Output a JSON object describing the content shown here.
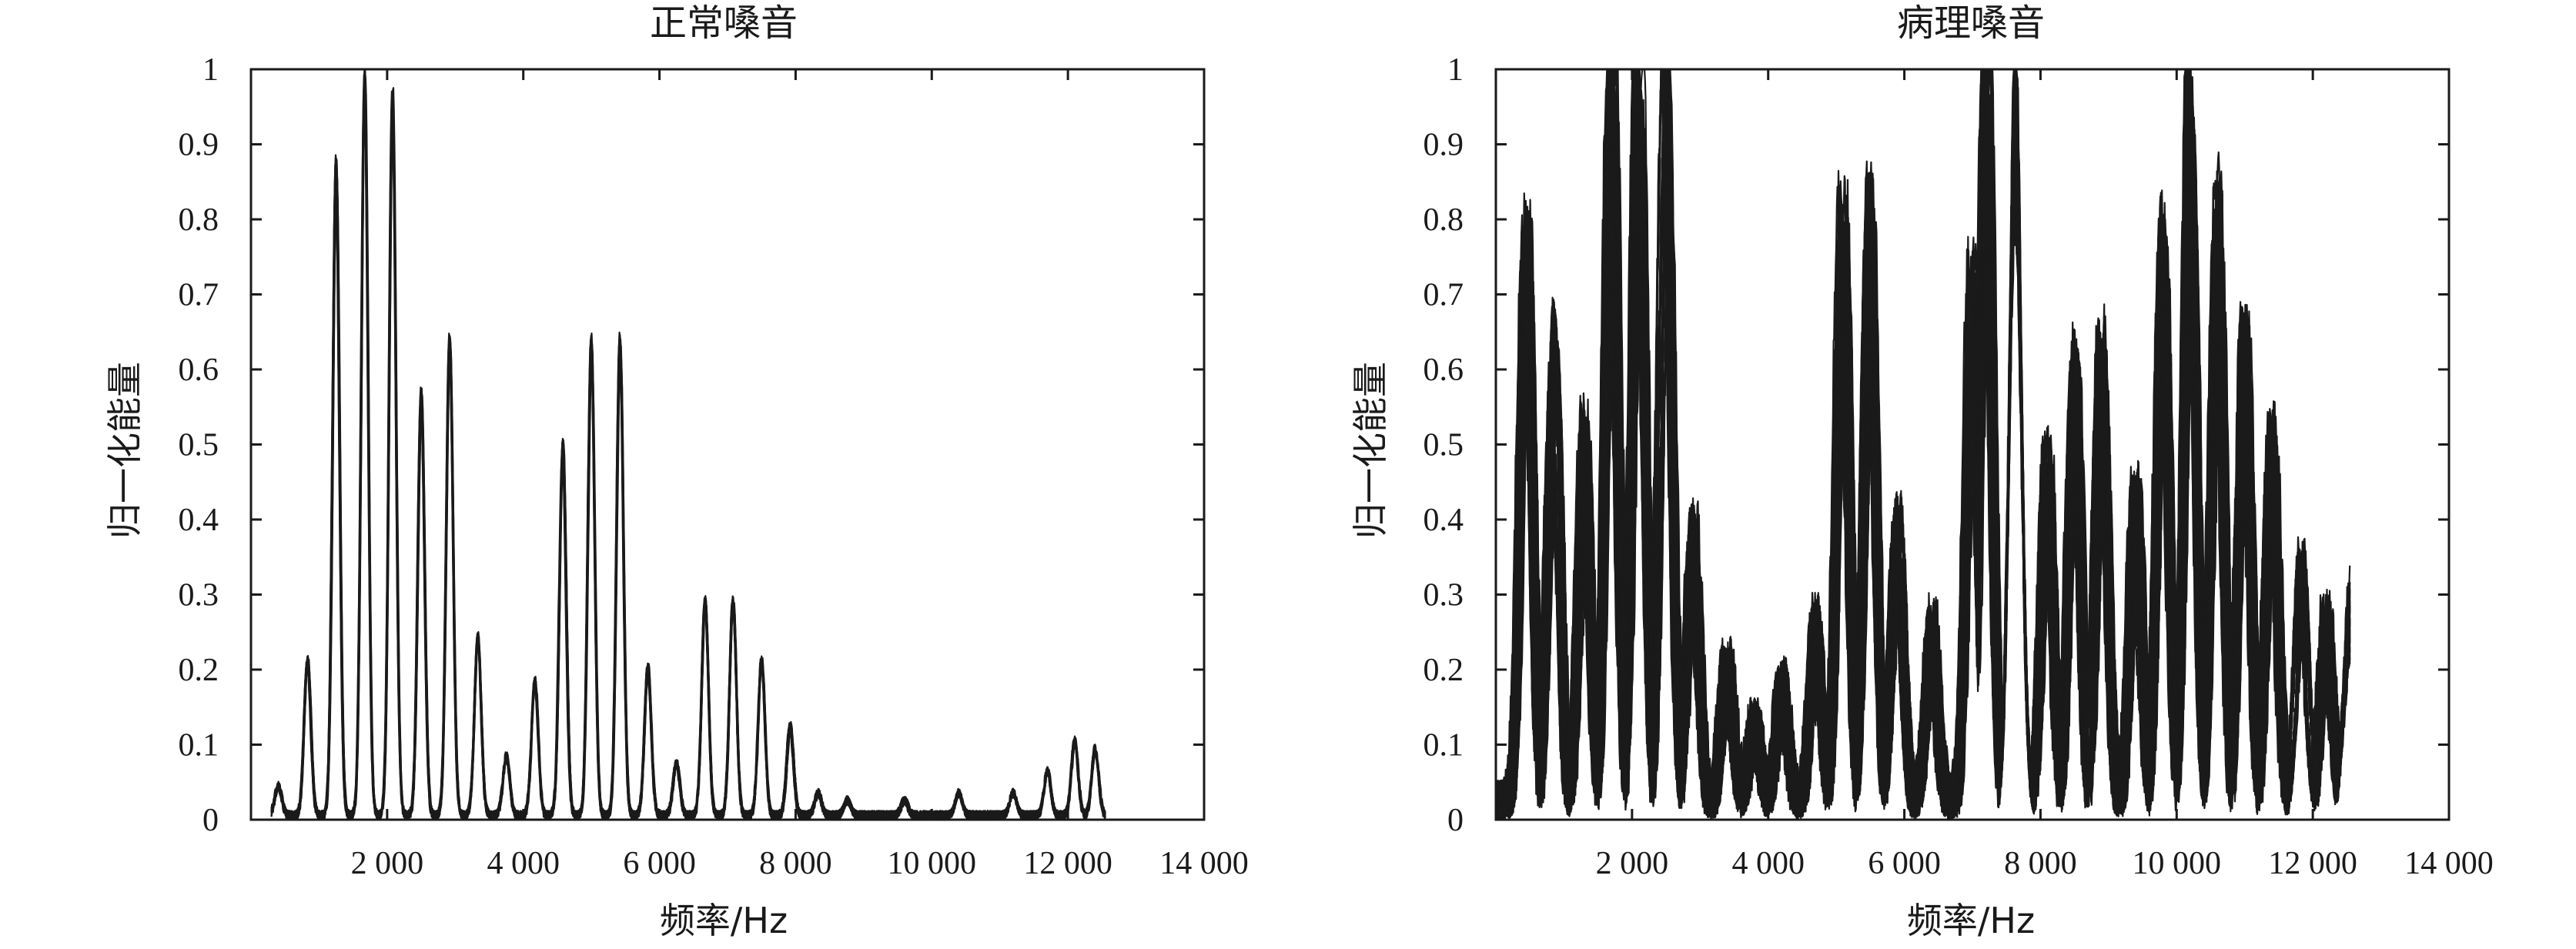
{
  "chart_data": [
    {
      "type": "line",
      "title": "正常嗓音",
      "xlabel": "频率/Hz",
      "ylabel": "归一化能量",
      "xlim": [
        0,
        14000
      ],
      "ylim": [
        0,
        1
      ],
      "xticks": [
        2000,
        4000,
        6000,
        8000,
        10000,
        12000,
        14000
      ],
      "xtick_labels": [
        "2 000",
        "4 000",
        "6 000",
        "8 000",
        "10 000",
        "12 000",
        "14 000"
      ],
      "yticks": [
        0,
        0.1,
        0.2,
        0.3,
        0.4,
        0.5,
        0.6,
        0.7,
        0.8,
        0.9,
        1
      ],
      "ytick_labels": [
        "0",
        "0.1",
        "0.2",
        "0.3",
        "0.4",
        "0.5",
        "0.6",
        "0.7",
        "0.8",
        "0.9",
        "1"
      ],
      "grid": false,
      "x_range_of_data": [
        300,
        12550
      ],
      "peaks": [
        {
          "x": 400,
          "y": 0.04
        },
        {
          "x": 830,
          "y": 0.21
        },
        {
          "x": 1250,
          "y": 0.88
        },
        {
          "x": 1670,
          "y": 1.0
        },
        {
          "x": 2080,
          "y": 0.97
        },
        {
          "x": 2500,
          "y": 0.57
        },
        {
          "x": 2920,
          "y": 0.64
        },
        {
          "x": 3330,
          "y": 0.24
        },
        {
          "x": 3750,
          "y": 0.08
        },
        {
          "x": 4170,
          "y": 0.18
        },
        {
          "x": 4580,
          "y": 0.5
        },
        {
          "x": 5000,
          "y": 0.64
        },
        {
          "x": 5420,
          "y": 0.64
        },
        {
          "x": 5830,
          "y": 0.2
        },
        {
          "x": 6250,
          "y": 0.07
        },
        {
          "x": 6670,
          "y": 0.29
        },
        {
          "x": 7080,
          "y": 0.29
        },
        {
          "x": 7500,
          "y": 0.21
        },
        {
          "x": 7920,
          "y": 0.12
        },
        {
          "x": 8330,
          "y": 0.03
        },
        {
          "x": 8750,
          "y": 0.02
        },
        {
          "x": 9600,
          "y": 0.02
        },
        {
          "x": 10400,
          "y": 0.03
        },
        {
          "x": 11200,
          "y": 0.03
        },
        {
          "x": 11700,
          "y": 0.06
        },
        {
          "x": 12100,
          "y": 0.1
        },
        {
          "x": 12400,
          "y": 0.09
        }
      ]
    },
    {
      "type": "line",
      "title": "病理嗓音",
      "xlabel": "频率/Hz",
      "ylabel": "归一化能量",
      "xlim": [
        0,
        14000
      ],
      "ylim": [
        0,
        1
      ],
      "xticks": [
        2000,
        4000,
        6000,
        8000,
        10000,
        12000,
        14000
      ],
      "xtick_labels": [
        "2 000",
        "4 000",
        "6 000",
        "8 000",
        "10 000",
        "12 000",
        "14 000"
      ],
      "yticks": [
        0,
        0.1,
        0.2,
        0.3,
        0.4,
        0.5,
        0.6,
        0.7,
        0.8,
        0.9,
        1
      ],
      "ytick_labels": [
        "0",
        "0.1",
        "0.2",
        "0.3",
        "0.4",
        "0.5",
        "0.6",
        "0.7",
        "0.8",
        "0.9",
        "1"
      ],
      "grid": false,
      "x_range_of_data": [
        0,
        12550
      ],
      "peaks": [
        {
          "x": 450,
          "y": 0.77
        },
        {
          "x": 850,
          "y": 0.63
        },
        {
          "x": 1300,
          "y": 0.49
        },
        {
          "x": 1700,
          "y": 1.0
        },
        {
          "x": 2100,
          "y": 1.0
        },
        {
          "x": 2500,
          "y": 1.0
        },
        {
          "x": 2900,
          "y": 0.35
        },
        {
          "x": 3400,
          "y": 0.18
        },
        {
          "x": 3800,
          "y": 0.1
        },
        {
          "x": 4200,
          "y": 0.15
        },
        {
          "x": 4700,
          "y": 0.22
        },
        {
          "x": 5100,
          "y": 0.79
        },
        {
          "x": 5500,
          "y": 0.81
        },
        {
          "x": 5900,
          "y": 0.36
        },
        {
          "x": 6400,
          "y": 0.22
        },
        {
          "x": 7000,
          "y": 0.7
        },
        {
          "x": 7200,
          "y": 1.0
        },
        {
          "x": 7600,
          "y": 1.0
        },
        {
          "x": 8100,
          "y": 0.45
        },
        {
          "x": 8500,
          "y": 0.59
        },
        {
          "x": 8900,
          "y": 0.6
        },
        {
          "x": 9400,
          "y": 0.4
        },
        {
          "x": 9800,
          "y": 0.76
        },
        {
          "x": 10200,
          "y": 1.0
        },
        {
          "x": 10600,
          "y": 0.81
        },
        {
          "x": 11000,
          "y": 0.62
        },
        {
          "x": 11400,
          "y": 0.48
        },
        {
          "x": 11800,
          "y": 0.3
        },
        {
          "x": 12200,
          "y": 0.23
        },
        {
          "x": 12500,
          "y": 0.25
        }
      ]
    }
  ]
}
